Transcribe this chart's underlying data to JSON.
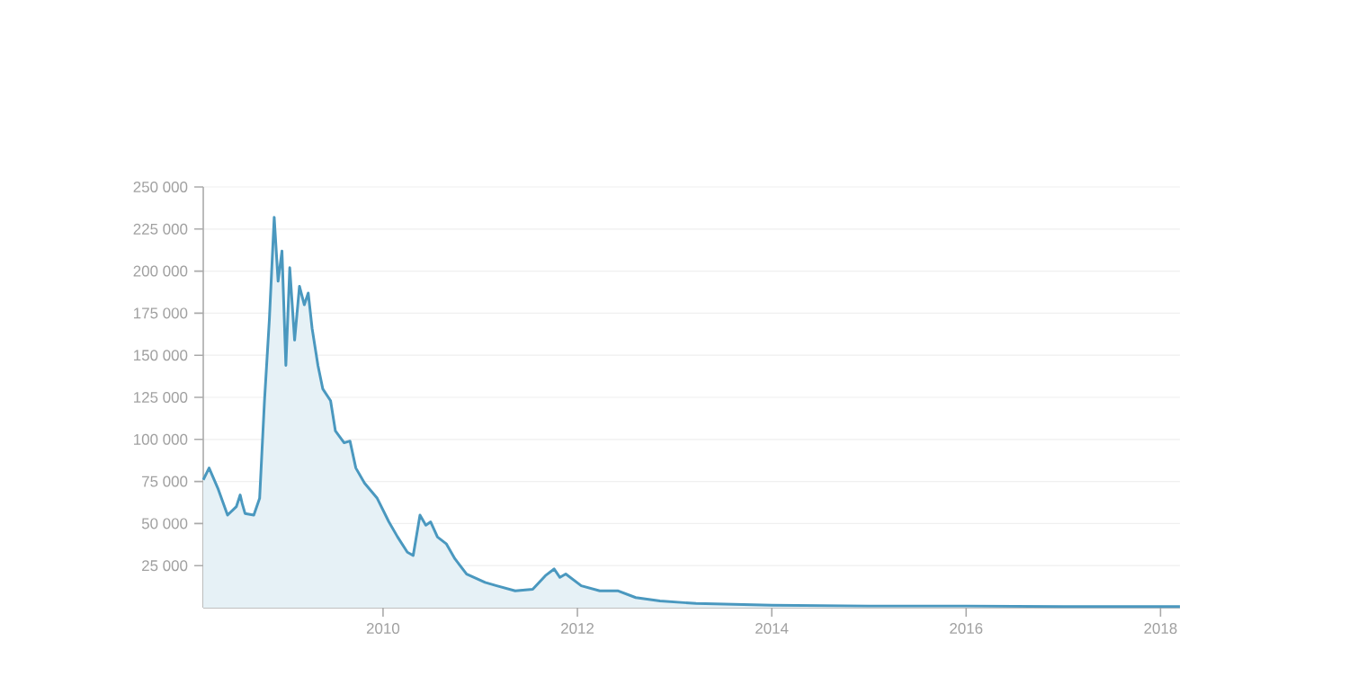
{
  "chart_data": {
    "type": "area",
    "color": "#4a98bf",
    "grid": "y",
    "x": [
      2008.15,
      2008.21,
      2008.3,
      2008.4,
      2008.49,
      2008.53,
      2008.55,
      2008.58,
      2008.67,
      2008.73,
      2008.78,
      2008.83,
      2008.88,
      2008.92,
      2008.96,
      2009.0,
      2009.04,
      2009.09,
      2009.14,
      2009.19,
      2009.23,
      2009.27,
      2009.33,
      2009.38,
      2009.46,
      2009.51,
      2009.6,
      2009.66,
      2009.72,
      2009.81,
      2009.94,
      2010.06,
      2010.15,
      2010.25,
      2010.31,
      2010.38,
      2010.44,
      2010.49,
      2010.56,
      2010.65,
      2010.74,
      2010.86,
      2011.05,
      2011.17,
      2011.36,
      2011.54,
      2011.67,
      2011.76,
      2011.82,
      2011.88,
      2012.04,
      2012.23,
      2012.42,
      2012.6,
      2012.85,
      2013.22,
      2014.0,
      2015.0,
      2016.0,
      2017.0,
      2018.2
    ],
    "values": [
      76000,
      83000,
      71000,
      55000,
      60000,
      67000,
      62000,
      56000,
      55000,
      65000,
      123000,
      171000,
      232000,
      194000,
      212000,
      144000,
      202000,
      159000,
      191000,
      180000,
      187000,
      166000,
      144000,
      130000,
      123000,
      105000,
      98000,
      99000,
      83000,
      74000,
      65000,
      51000,
      42000,
      33000,
      31000,
      55000,
      49000,
      51000,
      42000,
      38000,
      29000,
      20000,
      15000,
      13000,
      10000,
      11000,
      19000,
      23000,
      18000,
      20000,
      13000,
      10000,
      10000,
      6000,
      4000,
      2500,
      1500,
      1000,
      1000,
      700,
      700
    ],
    "xlim": [
      2008.15,
      2018.2
    ],
    "xticks": [
      2010,
      2012,
      2014,
      2016,
      2018
    ],
    "ylim": [
      0,
      250000
    ],
    "yticks": [
      {
        "value": 25000,
        "label": "25 000"
      },
      {
        "value": 50000,
        "label": "50 000"
      },
      {
        "value": 75000,
        "label": "75 000"
      },
      {
        "value": 100000,
        "label": "100 000"
      },
      {
        "value": 125000,
        "label": "125 000"
      },
      {
        "value": 150000,
        "label": "150 000"
      },
      {
        "value": 175000,
        "label": "175 000"
      },
      {
        "value": 200000,
        "label": "200 000"
      },
      {
        "value": 225000,
        "label": "225 000"
      },
      {
        "value": 250000,
        "label": "250 000"
      }
    ]
  }
}
